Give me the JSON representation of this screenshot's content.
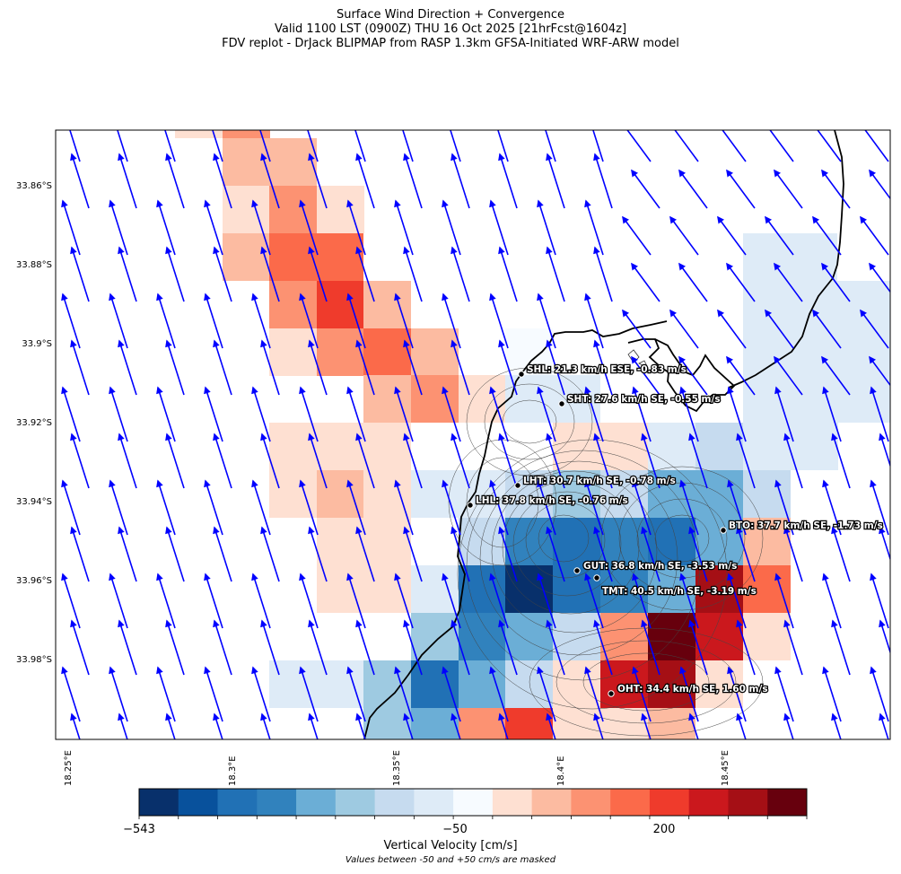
{
  "title": {
    "line1": "Surface Wind Direction + Convergence",
    "line2": "Valid 1100 LST (0900Z) THU 16 Oct 2025 [21hrFcst@1604z]",
    "line3": "FDV replot - DrJack BLIPMAP from RASP 1.3km GFSA-Initiated WRF-ARW model"
  },
  "axes": {
    "y_ticks": [
      "33.86°S",
      "33.88°S",
      "33.9°S",
      "33.92°S",
      "33.94°S",
      "33.96°S",
      "33.98°S"
    ],
    "x_ticks": [
      "18.25°E",
      "18.3°E",
      "18.35°E",
      "18.4°E",
      "18.45°E"
    ]
  },
  "stations": [
    {
      "label": "SHL: 21.3 km/h ESE, -0.83 m/s"
    },
    {
      "label": "SHT: 27.6 km/h SE, -0.55 m/s"
    },
    {
      "label": "LHT: 30.7 km/h SE, -0.78 m/s"
    },
    {
      "label": "LHL: 37.8 km/h SE, -0.76 m/s"
    },
    {
      "label": "BTO: 37.7 km/h SE, -1.73 m/s"
    },
    {
      "label": "GUT: 36.8 km/h SE, -3.53 m/s"
    },
    {
      "label": "TMT: 40.5 km/h SE, -3.19 m/s"
    },
    {
      "label": "OHT: 34.4 km/h SE, 1.60 m/s"
    }
  ],
  "colorbar": {
    "label": "Vertical Velocity [cm/s]",
    "note": "Values between -50 and +50 cm/s are masked",
    "tick_labels": [
      "−543",
      "−50",
      "200"
    ],
    "colors": [
      "#08306b",
      "#08519c",
      "#2171b5",
      "#3182bd",
      "#6baed6",
      "#9ecae1",
      "#c6dbef",
      "#deebf7",
      "#f7fbff",
      "#fee0d2",
      "#fcbba1",
      "#fc9272",
      "#fb6a4a",
      "#ef3b2c",
      "#cb181d",
      "#a50f15",
      "#67000d"
    ]
  },
  "wind_color": "#0000ff"
}
